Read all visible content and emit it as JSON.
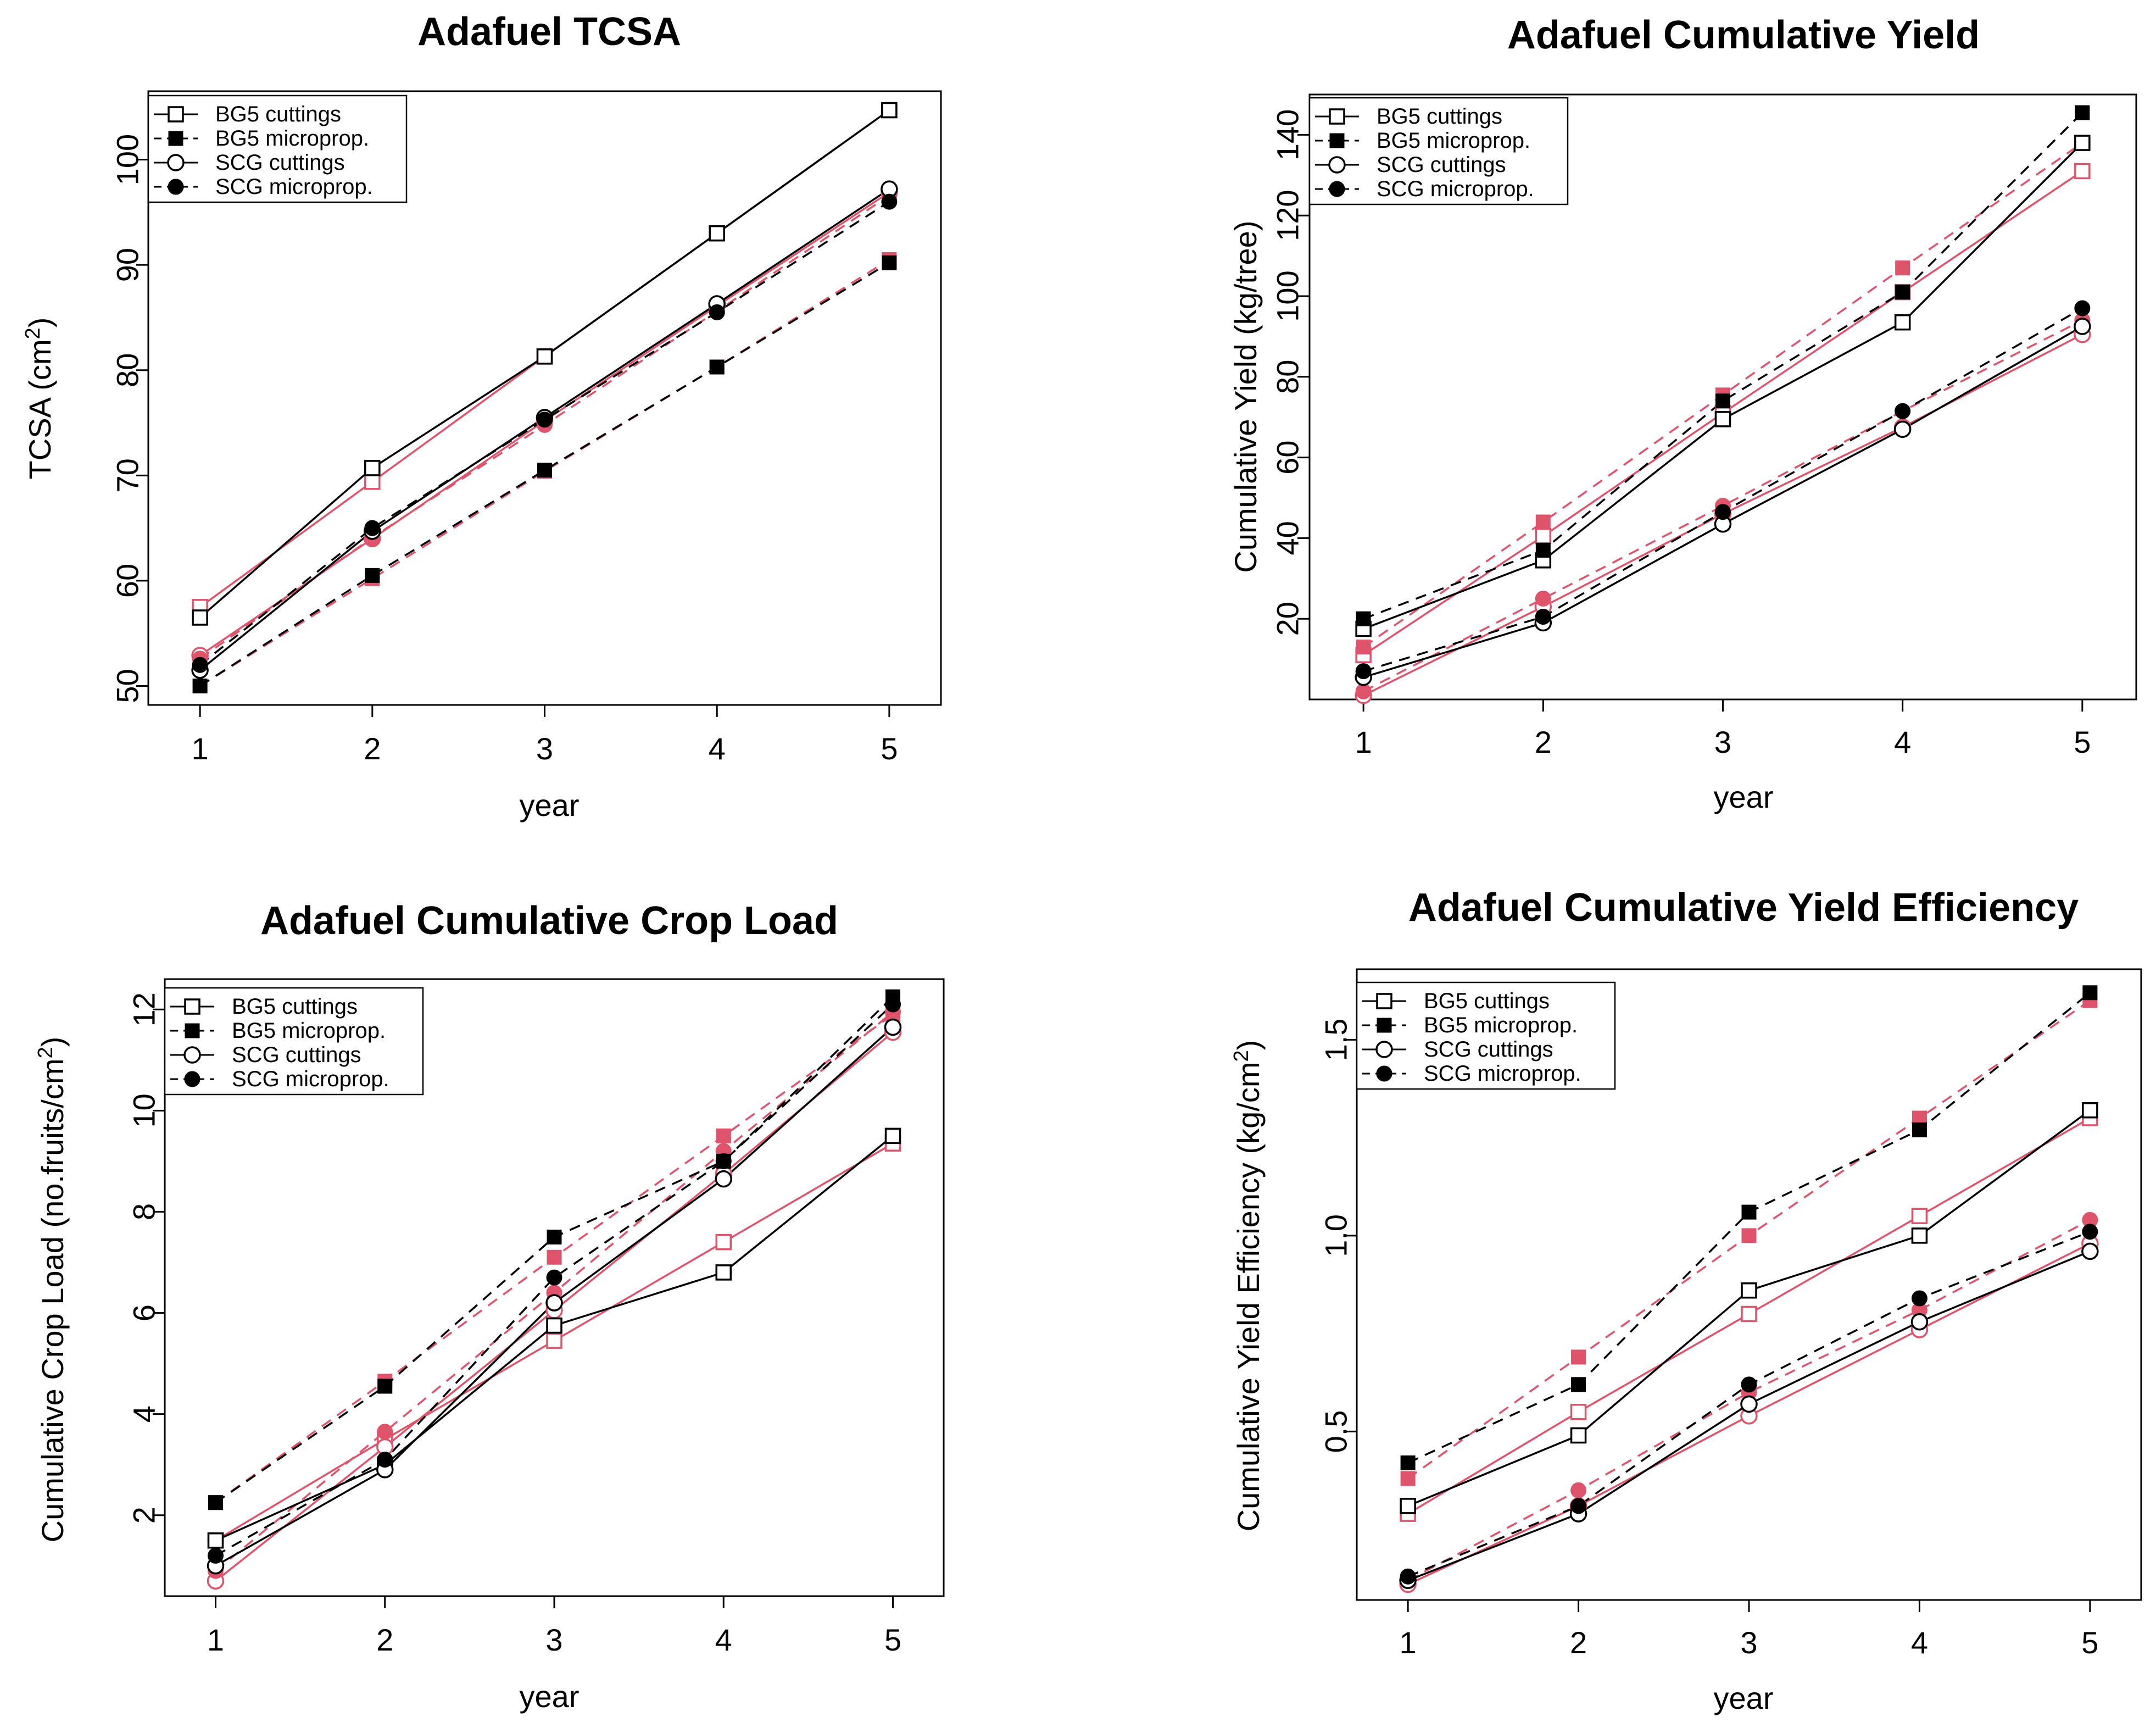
{
  "colors": {
    "black": "#000000",
    "red": "#df536b"
  },
  "chart_data": [
    {
      "type": "line",
      "title": "Adafuel TCSA",
      "xlabel": "year",
      "ylabel": "TCSA (cm2)",
      "ylabel_main": "TCSA (cm",
      "ylabel_sup": "2",
      "ylabel_end": ")",
      "x": [
        1,
        2,
        3,
        4,
        5
      ],
      "xlim": [
        0.7,
        5.3
      ],
      "ylim": [
        48.2,
        106.5
      ],
      "yticks": [
        50,
        60,
        70,
        80,
        90,
        100
      ],
      "legend": [
        {
          "label": "BG5 cuttings",
          "marker": "open-square",
          "line": "solid"
        },
        {
          "label": "BG5 microprop.",
          "marker": "filled-square",
          "line": "dashed"
        },
        {
          "label": "SCG cuttings",
          "marker": "open-circle",
          "line": "solid"
        },
        {
          "label": "SCG microprop.",
          "marker": "filled-circle",
          "line": "dashed"
        }
      ],
      "series": [
        {
          "name": "BG5 cuttings",
          "group": "observed",
          "color": "black",
          "values": [
            56.5,
            70.7,
            81.3,
            93.0,
            104.7
          ]
        },
        {
          "name": "BG5 cuttings",
          "group": "fitted",
          "color": "red",
          "values": [
            57.5,
            69.4,
            81.3,
            93.0,
            104.7
          ]
        },
        {
          "name": "BG5 microprop.",
          "group": "observed",
          "color": "black",
          "values": [
            50.0,
            60.5,
            70.5,
            80.3,
            90.2
          ]
        },
        {
          "name": "BG5 microprop.",
          "group": "fitted",
          "color": "red",
          "values": [
            50.0,
            60.2,
            70.4,
            80.3,
            90.5
          ]
        },
        {
          "name": "SCG cuttings",
          "group": "observed",
          "color": "black",
          "values": [
            51.5,
            64.7,
            75.5,
            86.3,
            97.2
          ]
        },
        {
          "name": "SCG cuttings",
          "group": "fitted",
          "color": "red",
          "values": [
            52.9,
            64.0,
            75.2,
            86.1,
            96.9
          ]
        },
        {
          "name": "SCG microprop.",
          "group": "observed",
          "color": "black",
          "values": [
            52.0,
            65.0,
            75.3,
            85.5,
            96.0
          ]
        },
        {
          "name": "SCG microprop.",
          "group": "fitted",
          "color": "red",
          "values": [
            52.6,
            64.1,
            74.8,
            85.6,
            96.6
          ]
        }
      ]
    },
    {
      "type": "line",
      "title": "Adafuel Cumulative Yield",
      "xlabel": "year",
      "ylabel": "Cumulative Yield (kg/tree)",
      "x": [
        1,
        2,
        3,
        4,
        5
      ],
      "xlim": [
        0.7,
        5.3
      ],
      "ylim": [
        0,
        150
      ],
      "yticks": [
        20,
        40,
        60,
        80,
        100,
        120,
        140
      ],
      "legend": [
        {
          "label": "BG5 cuttings",
          "marker": "open-square",
          "line": "solid"
        },
        {
          "label": "BG5 microprop.",
          "marker": "filled-square",
          "line": "dashed"
        },
        {
          "label": "SCG cuttings",
          "marker": "open-circle",
          "line": "solid"
        },
        {
          "label": "SCG microprop.",
          "marker": "filled-circle",
          "line": "dashed"
        }
      ],
      "series": [
        {
          "name": "BG5 cuttings",
          "group": "observed",
          "color": "black",
          "values": [
            17.5,
            34.5,
            69.5,
            93.5,
            138.0
          ]
        },
        {
          "name": "BG5 cuttings",
          "group": "fitted",
          "color": "red",
          "values": [
            11.0,
            40.5,
            71.0,
            101.0,
            131.0
          ]
        },
        {
          "name": "BG5 microprop.",
          "group": "observed",
          "color": "black",
          "values": [
            20.0,
            37.0,
            74.0,
            101.0,
            145.5
          ]
        },
        {
          "name": "BG5 microprop.",
          "group": "fitted",
          "color": "red",
          "values": [
            13.0,
            44.0,
            75.5,
            107.0,
            138.0
          ]
        },
        {
          "name": "SCG cuttings",
          "group": "observed",
          "color": "black",
          "values": [
            5.5,
            19.0,
            43.5,
            67.0,
            92.5
          ]
        },
        {
          "name": "SCG cuttings",
          "group": "fitted",
          "color": "red",
          "values": [
            1.0,
            23.0,
            46.0,
            67.5,
            90.5
          ]
        },
        {
          "name": "SCG microprop.",
          "group": "observed",
          "color": "black",
          "values": [
            7.0,
            20.5,
            46.5,
            71.5,
            97.0
          ]
        },
        {
          "name": "SCG microprop.",
          "group": "fitted",
          "color": "red",
          "values": [
            2.0,
            25.0,
            48.0,
            71.5,
            94.0
          ]
        }
      ]
    },
    {
      "type": "line",
      "title": "Adafuel Cumulative Crop Load",
      "xlabel": "year",
      "ylabel": "Cumulative Crop Load (no.fruits/cm2)",
      "ylabel_main": "Cumulative Crop Load (no.fruits/cm",
      "ylabel_sup": "2",
      "ylabel_end": ")",
      "x": [
        1,
        2,
        3,
        4,
        5
      ],
      "xlim": [
        0.7,
        5.3
      ],
      "ylim": [
        0.4,
        12.6
      ],
      "yticks": [
        2,
        4,
        6,
        8,
        10,
        12
      ],
      "legend": [
        {
          "label": "BG5 cuttings",
          "marker": "open-square",
          "line": "solid"
        },
        {
          "label": "BG5 microprop.",
          "marker": "filled-square",
          "line": "dashed"
        },
        {
          "label": "SCG cuttings",
          "marker": "open-circle",
          "line": "solid"
        },
        {
          "label": "SCG microprop.",
          "marker": "filled-circle",
          "line": "dashed"
        }
      ],
      "series": [
        {
          "name": "BG5 cuttings",
          "group": "observed",
          "color": "black",
          "values": [
            1.5,
            3.0,
            5.75,
            6.8,
            9.5
          ]
        },
        {
          "name": "BG5 cuttings",
          "group": "fitted",
          "color": "red",
          "values": [
            1.5,
            3.5,
            5.45,
            7.4,
            9.35
          ]
        },
        {
          "name": "BG5 microprop.",
          "group": "observed",
          "color": "black",
          "values": [
            2.25,
            4.55,
            7.5,
            9.0,
            12.25
          ]
        },
        {
          "name": "BG5 microprop.",
          "group": "fitted",
          "color": "red",
          "values": [
            2.25,
            4.65,
            7.1,
            9.5,
            11.9
          ]
        },
        {
          "name": "SCG cuttings",
          "group": "observed",
          "color": "black",
          "values": [
            1.0,
            2.9,
            6.2,
            8.65,
            11.65
          ]
        },
        {
          "name": "SCG cuttings",
          "group": "fitted",
          "color": "red",
          "values": [
            0.7,
            3.35,
            6.05,
            8.75,
            11.55
          ]
        },
        {
          "name": "SCG microprop.",
          "group": "observed",
          "color": "black",
          "values": [
            1.2,
            3.1,
            6.7,
            9.0,
            12.1
          ]
        },
        {
          "name": "SCG microprop.",
          "group": "fitted",
          "color": "red",
          "values": [
            0.9,
            3.65,
            6.4,
            9.2,
            11.95
          ]
        }
      ]
    },
    {
      "type": "line",
      "title": "Adafuel Cumulative Yield Efficiency",
      "xlabel": "year",
      "ylabel": "Cumulative Yield Efficiency (kg/cm2)",
      "ylabel_main": "Cumulative Yield Efficiency (kg/cm",
      "ylabel_sup": "2",
      "ylabel_end": ")",
      "x": [
        1,
        2,
        3,
        4,
        5
      ],
      "xlim": [
        0.7,
        5.3
      ],
      "ylim": [
        0.07,
        1.68
      ],
      "yticks": [
        0.5,
        1.0,
        1.5
      ],
      "yticklabels": [
        "0.5",
        "1.0",
        "1.5"
      ],
      "legend": [
        {
          "label": "BG5 cuttings",
          "marker": "open-square",
          "line": "solid"
        },
        {
          "label": "BG5 microprop.",
          "marker": "filled-square",
          "line": "dashed"
        },
        {
          "label": "SCG cuttings",
          "marker": "open-circle",
          "line": "solid"
        },
        {
          "label": "SCG microprop.",
          "marker": "filled-circle",
          "line": "dashed"
        }
      ],
      "series": [
        {
          "name": "BG5 cuttings",
          "group": "observed",
          "color": "black",
          "values": [
            0.31,
            0.49,
            0.86,
            1.0,
            1.32
          ]
        },
        {
          "name": "BG5 cuttings",
          "group": "fitted",
          "color": "red",
          "values": [
            0.29,
            0.55,
            0.8,
            1.05,
            1.3
          ]
        },
        {
          "name": "BG5 microprop.",
          "group": "observed",
          "color": "black",
          "values": [
            0.42,
            0.62,
            1.06,
            1.27,
            1.62
          ]
        },
        {
          "name": "BG5 microprop.",
          "group": "fitted",
          "color": "red",
          "values": [
            0.38,
            0.69,
            1.0,
            1.3,
            1.6
          ]
        },
        {
          "name": "SCG cuttings",
          "group": "observed",
          "color": "black",
          "values": [
            0.12,
            0.29,
            0.57,
            0.78,
            0.96
          ]
        },
        {
          "name": "SCG cuttings",
          "group": "fitted",
          "color": "red",
          "values": [
            0.11,
            0.31,
            0.54,
            0.76,
            0.98
          ]
        },
        {
          "name": "SCG microprop.",
          "group": "observed",
          "color": "black",
          "values": [
            0.13,
            0.31,
            0.62,
            0.84,
            1.01
          ]
        },
        {
          "name": "SCG microprop.",
          "group": "fitted",
          "color": "red",
          "values": [
            0.12,
            0.35,
            0.6,
            0.81,
            1.04
          ]
        }
      ]
    }
  ]
}
